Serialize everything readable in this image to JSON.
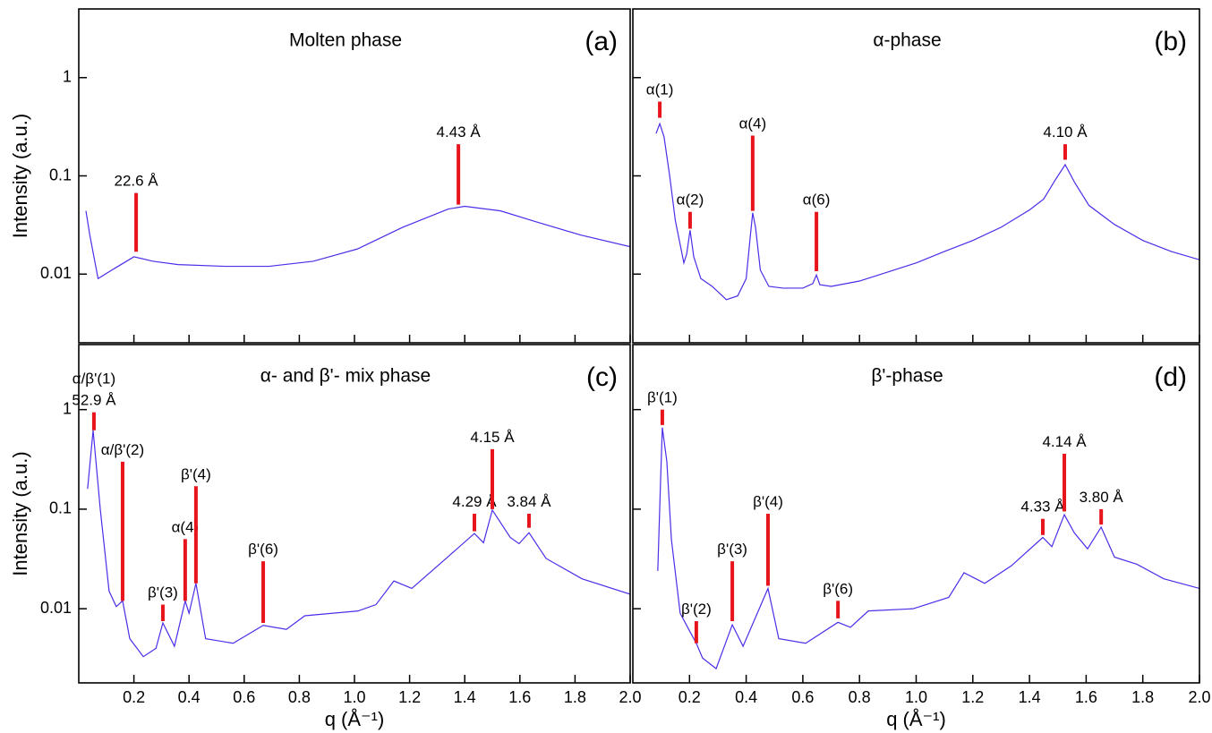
{
  "chart_data": [
    {
      "type": "line",
      "title": "Molten phase",
      "label": "(a)",
      "color": "#4a2ee8",
      "ylabel": "Intensity (a.u.)",
      "log_y": true,
      "show_xtick_labels": false,
      "show_ytick_labels": true,
      "xlim": [
        0,
        2.0
      ],
      "ylim": [
        0.002,
        5
      ],
      "xticks": [
        0.2,
        0.4,
        0.6,
        0.8,
        {
          "value": 1,
          "label": "1.0"
        },
        1.2,
        1.4,
        1.6,
        1.8,
        {
          "value": 2,
          "label": "2.0"
        }
      ],
      "yticks": [
        0.01,
        0.1,
        1
      ],
      "x": [
        0.026,
        0.04,
        0.07,
        0.12,
        0.2,
        0.27,
        0.36,
        0.53,
        0.69,
        0.85,
        1.01,
        1.175,
        1.34,
        1.4,
        1.53,
        1.66,
        1.82,
        2.0
      ],
      "values": [
        0.044,
        0.025,
        0.009,
        0.011,
        0.015,
        0.0135,
        0.0125,
        0.012,
        0.012,
        0.0135,
        0.018,
        0.03,
        0.046,
        0.049,
        0.044,
        0.034,
        0.025,
        0.019
      ],
      "annotations": [
        {
          "text": [
            "22.6 Å"
          ],
          "x": 0.208,
          "y_low": 0.0169,
          "y_high": 0.067
        },
        {
          "text": [
            "4.43 Å"
          ],
          "x": 1.377,
          "y_low": 0.051,
          "y_high": 0.21
        }
      ]
    },
    {
      "type": "line",
      "title": "α-phase",
      "label": "(b)",
      "color": "#4a2ee8",
      "log_y": true,
      "show_xtick_labels": false,
      "show_ytick_labels": false,
      "xlim": [
        0,
        2.0
      ],
      "ylim": [
        0.002,
        5
      ],
      "xticks": [
        0.2,
        0.4,
        0.6,
        0.8,
        {
          "value": 1,
          "label": "1.0"
        },
        1.2,
        1.4,
        1.6,
        1.8,
        {
          "value": 2,
          "label": "2.0"
        }
      ],
      "yticks": [
        0.01,
        0.1,
        1
      ],
      "x": [
        0.082,
        0.095,
        0.11,
        0.13,
        0.15,
        0.18,
        0.19,
        0.202,
        0.215,
        0.24,
        0.28,
        0.33,
        0.37,
        0.4,
        0.415,
        0.423,
        0.433,
        0.45,
        0.48,
        0.53,
        0.6,
        0.635,
        0.648,
        0.66,
        0.7,
        0.8,
        0.9,
        1.0,
        1.1,
        1.2,
        1.3,
        1.4,
        1.45,
        1.49,
        1.526,
        1.56,
        1.61,
        1.7,
        1.8,
        1.9,
        2.0
      ],
      "values": [
        0.27,
        0.34,
        0.25,
        0.1,
        0.035,
        0.013,
        0.016,
        0.028,
        0.015,
        0.009,
        0.0075,
        0.0055,
        0.006,
        0.009,
        0.025,
        0.042,
        0.03,
        0.011,
        0.0075,
        0.0072,
        0.0072,
        0.008,
        0.0098,
        0.0078,
        0.0075,
        0.0085,
        0.0105,
        0.013,
        0.017,
        0.022,
        0.03,
        0.045,
        0.058,
        0.09,
        0.13,
        0.085,
        0.05,
        0.032,
        0.022,
        0.017,
        0.014
      ],
      "annotations": [
        {
          "text": [
            "α(1)"
          ],
          "x": 0.095,
          "y_low": 0.39,
          "y_high": 0.57
        },
        {
          "text": [
            "α(2)"
          ],
          "x": 0.202,
          "y_low": 0.029,
          "y_high": 0.043
        },
        {
          "text": [
            "α(4)"
          ],
          "x": 0.423,
          "y_low": 0.044,
          "y_high": 0.257
        },
        {
          "text": [
            "α(6)"
          ],
          "x": 0.648,
          "y_low": 0.0107,
          "y_high": 0.043
        },
        {
          "text": [
            "4.10 Å"
          ],
          "x": 1.526,
          "y_low": 0.146,
          "y_high": 0.21
        }
      ]
    },
    {
      "type": "line",
      "title": "α- and β'- mix phase",
      "label": "(c)",
      "color": "#4a2ee8",
      "ylabel": "Intensity (a.u.)",
      "xlabel": "q (Å⁻¹)",
      "log_y": true,
      "show_xtick_labels": true,
      "show_ytick_labels": true,
      "xlim": [
        0,
        2.0
      ],
      "ylim": [
        0.0018,
        4.5
      ],
      "xticks": [
        0.2,
        0.4,
        0.6,
        0.8,
        {
          "value": 1,
          "label": "1.0"
        },
        1.2,
        1.4,
        1.6,
        1.8,
        {
          "value": 2,
          "label": "2.0"
        }
      ],
      "yticks": [
        0.01,
        0.1,
        1
      ],
      "x": [
        0.032,
        0.052,
        0.078,
        0.11,
        0.136,
        0.159,
        0.185,
        0.234,
        0.28,
        0.305,
        0.347,
        0.386,
        0.4,
        0.425,
        0.46,
        0.56,
        0.669,
        0.753,
        0.82,
        1.013,
        1.078,
        1.143,
        1.208,
        1.338,
        1.435,
        1.468,
        1.5,
        1.565,
        1.597,
        1.633,
        1.695,
        1.825,
        2.0
      ],
      "values": [
        0.16,
        0.62,
        0.1,
        0.015,
        0.0105,
        0.012,
        0.005,
        0.0033,
        0.004,
        0.0072,
        0.0042,
        0.012,
        0.009,
        0.018,
        0.005,
        0.0045,
        0.0068,
        0.0062,
        0.0085,
        0.0095,
        0.011,
        0.019,
        0.016,
        0.033,
        0.057,
        0.046,
        0.098,
        0.052,
        0.045,
        0.058,
        0.032,
        0.02,
        0.014
      ],
      "annotations": [
        {
          "text": [
            "α/β'(1)",
            "52.9 Å"
          ],
          "x": 0.055,
          "y_low": 0.62,
          "y_high": 0.94
        },
        {
          "text": [
            "α/β'(2)"
          ],
          "x": 0.159,
          "y_low": 0.012,
          "y_high": 0.3
        },
        {
          "text": [
            "β'(3)"
          ],
          "x": 0.305,
          "y_low": 0.0075,
          "y_high": 0.011
        },
        {
          "text": [
            "α(4)"
          ],
          "x": 0.386,
          "y_low": 0.012,
          "y_high": 0.05
        },
        {
          "text": [
            "β'(4)"
          ],
          "x": 0.425,
          "y_low": 0.018,
          "y_high": 0.17
        },
        {
          "text": [
            "β'(6)"
          ],
          "x": 0.669,
          "y_low": 0.0072,
          "y_high": 0.03
        },
        {
          "text": [
            "4.29 Å"
          ],
          "x": 1.435,
          "y_low": 0.06,
          "y_high": 0.09
        },
        {
          "text": [
            "4.15 Å"
          ],
          "x": 1.5,
          "y_low": 0.1,
          "y_high": 0.4
        },
        {
          "text": [
            "3.84 Å"
          ],
          "x": 1.633,
          "y_low": 0.065,
          "y_high": 0.09
        }
      ]
    },
    {
      "type": "line",
      "title": "β'-phase",
      "label": "(d)",
      "color": "#4a2ee8",
      "xlabel": "q (Å⁻¹)",
      "log_y": true,
      "show_xtick_labels": true,
      "show_ytick_labels": false,
      "xlim": [
        0,
        2.0
      ],
      "ylim": [
        0.0018,
        4.5
      ],
      "xticks": [
        0.2,
        0.4,
        0.6,
        0.8,
        {
          "value": 1,
          "label": "1.0"
        },
        1.2,
        1.4,
        1.6,
        1.8,
        {
          "value": 2,
          "label": "2.0"
        }
      ],
      "yticks": [
        0.01,
        0.1,
        1
      ],
      "x": [
        0.088,
        0.098,
        0.104,
        0.12,
        0.136,
        0.167,
        0.2,
        0.224,
        0.246,
        0.294,
        0.351,
        0.389,
        0.477,
        0.515,
        0.61,
        0.724,
        0.768,
        0.831,
        0.989,
        1.115,
        1.169,
        1.242,
        1.336,
        1.447,
        1.479,
        1.523,
        1.558,
        1.605,
        1.653,
        1.7,
        1.779,
        1.874,
        2.0
      ],
      "values": [
        0.024,
        0.2,
        0.66,
        0.3,
        0.05,
        0.009,
        0.006,
        0.0045,
        0.0032,
        0.0025,
        0.0069,
        0.0042,
        0.016,
        0.005,
        0.0045,
        0.0073,
        0.0065,
        0.0095,
        0.01,
        0.013,
        0.023,
        0.018,
        0.027,
        0.052,
        0.042,
        0.088,
        0.058,
        0.04,
        0.066,
        0.033,
        0.028,
        0.02,
        0.016
      ],
      "annotations": [
        {
          "text": [
            "β'(1)"
          ],
          "x": 0.104,
          "y_low": 0.7,
          "y_high": 1.0
        },
        {
          "text": [
            "β'(2)"
          ],
          "x": 0.224,
          "y_low": 0.0045,
          "y_high": 0.0075
        },
        {
          "text": [
            "β'(3)"
          ],
          "x": 0.351,
          "y_low": 0.0075,
          "y_high": 0.03
        },
        {
          "text": [
            "β'(4)"
          ],
          "x": 0.477,
          "y_low": 0.017,
          "y_high": 0.09
        },
        {
          "text": [
            "β'(6)"
          ],
          "x": 0.724,
          "y_low": 0.008,
          "y_high": 0.012
        },
        {
          "text": [
            "4.33 Å"
          ],
          "x": 1.447,
          "y_low": 0.055,
          "y_high": 0.08
        },
        {
          "text": [
            "4.14 Å"
          ],
          "x": 1.523,
          "y_low": 0.095,
          "y_high": 0.36
        },
        {
          "text": [
            "3.80 Å"
          ],
          "x": 1.653,
          "y_low": 0.07,
          "y_high": 0.1
        }
      ]
    }
  ]
}
